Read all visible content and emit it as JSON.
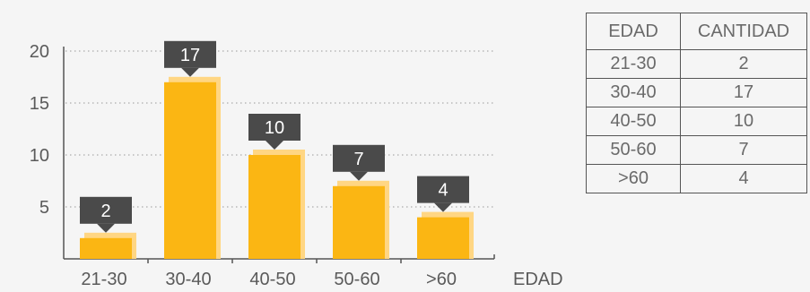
{
  "chart_data": {
    "type": "bar",
    "categories": [
      "21-30",
      "30-40",
      "40-50",
      "50-60",
      ">60"
    ],
    "values": [
      2,
      17,
      10,
      7,
      4
    ],
    "data_labels": [
      "2",
      "17",
      "10",
      "7",
      "4"
    ],
    "xlabel": "EDAD",
    "ylabel": "",
    "ylim": [
      0,
      20
    ],
    "yticks": [
      5,
      10,
      15,
      20
    ],
    "grid": "dotted horizontal",
    "colors": {
      "bar": "#FBB613",
      "bar_shadow": "#FFD683",
      "label_box": "#4A4A4A",
      "label_text": "#ffffff",
      "text": "#5a5a5a",
      "axis": "#555555",
      "grid": "#999999"
    }
  },
  "table": {
    "headers": [
      "EDAD",
      "CANTIDAD"
    ],
    "rows": [
      [
        "21-30",
        "2"
      ],
      [
        "30-40",
        "17"
      ],
      [
        "40-50",
        "10"
      ],
      [
        "50-60",
        "7"
      ],
      [
        ">60",
        "4"
      ]
    ]
  }
}
